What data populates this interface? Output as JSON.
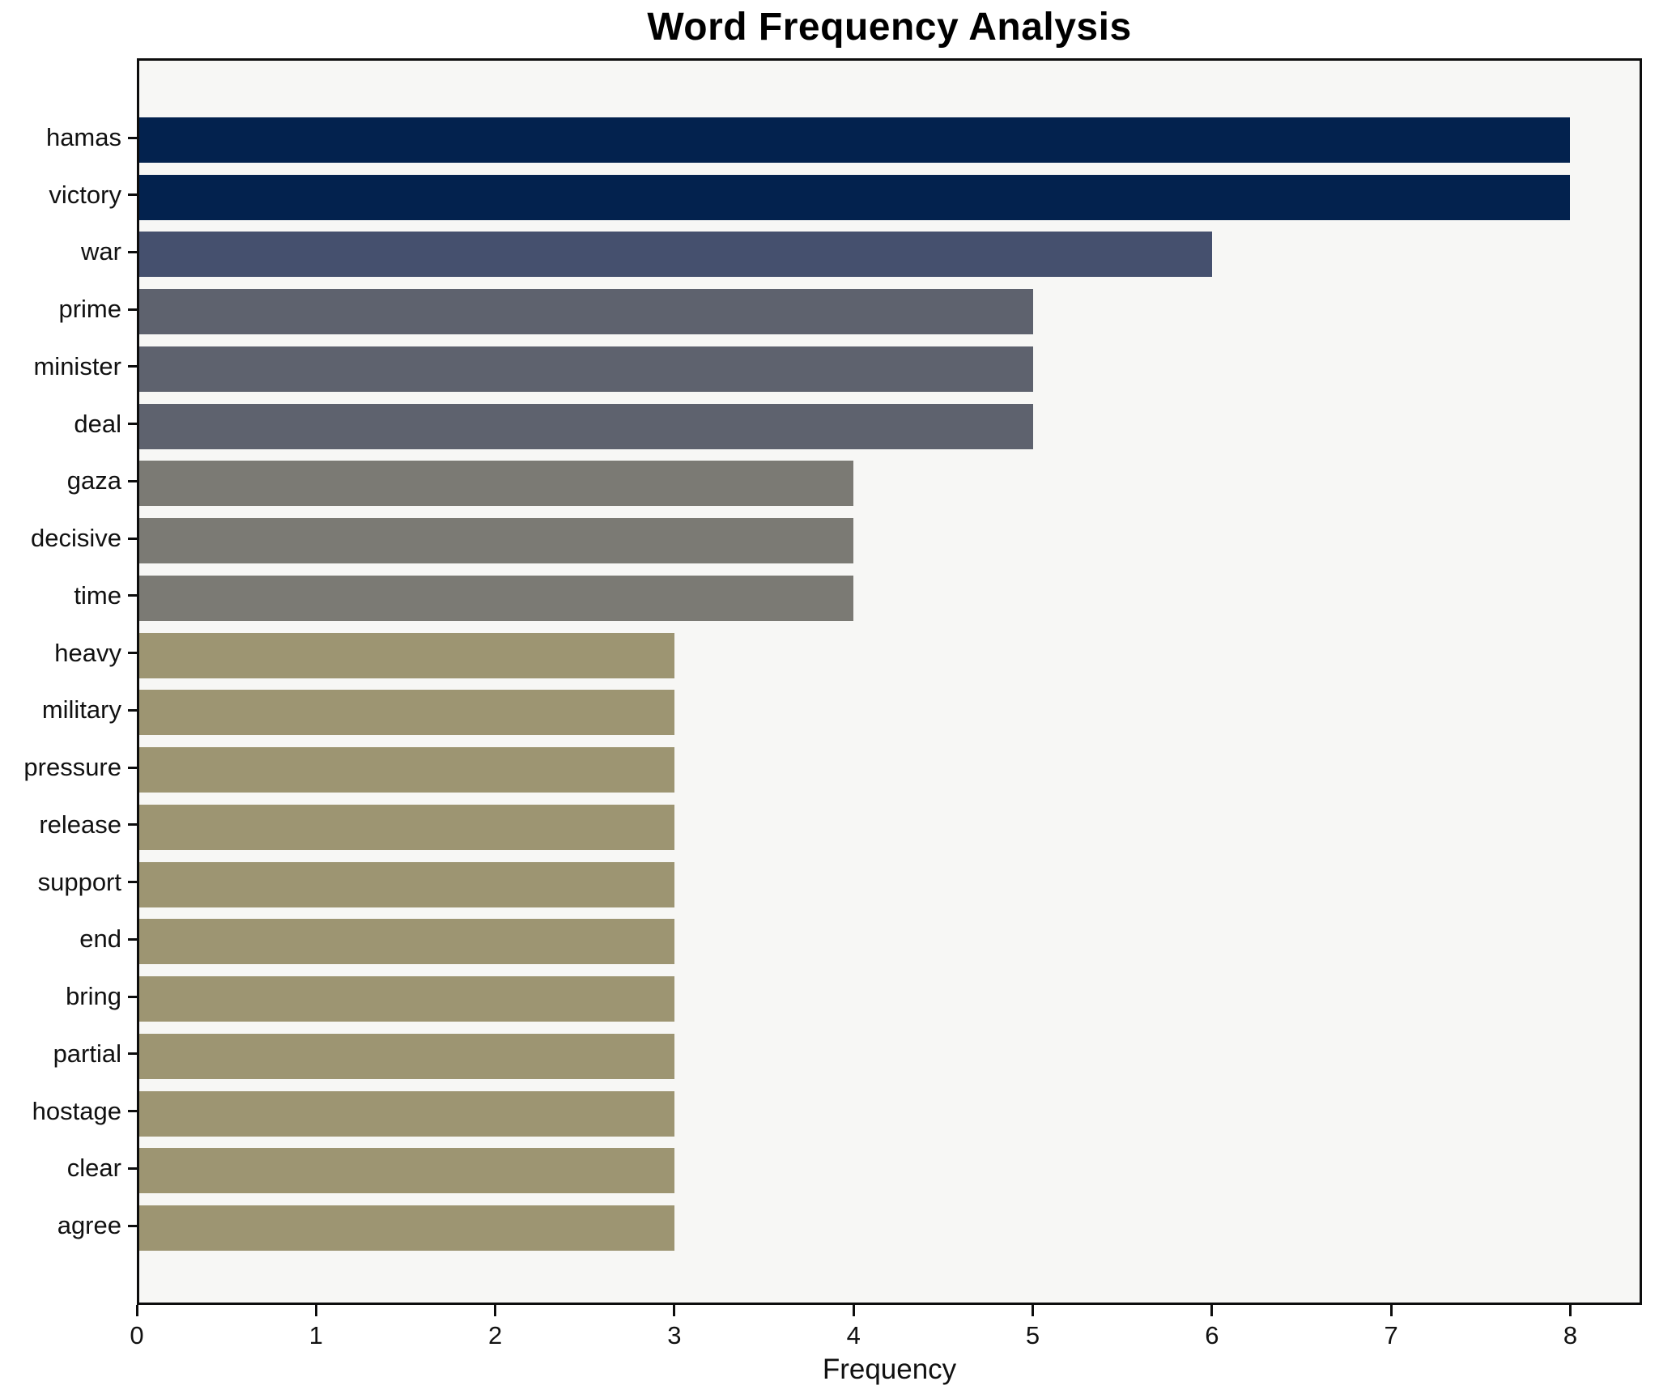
{
  "title": "Word Frequency Analysis",
  "chart_data": {
    "type": "bar",
    "orientation": "horizontal",
    "title": "Word Frequency Analysis",
    "xlabel": "Frequency",
    "ylabel": "",
    "categories": [
      "hamas",
      "victory",
      "war",
      "prime",
      "minister",
      "deal",
      "gaza",
      "decisive",
      "time",
      "heavy",
      "military",
      "pressure",
      "release",
      "support",
      "end",
      "bring",
      "partial",
      "hostage",
      "clear",
      "agree"
    ],
    "values": [
      8,
      8,
      6,
      5,
      5,
      5,
      4,
      4,
      4,
      3,
      3,
      3,
      3,
      3,
      3,
      3,
      3,
      3,
      3,
      3
    ],
    "bar_colors": [
      "#03224e",
      "#03224e",
      "#45506e",
      "#5e626e",
      "#5e626e",
      "#5e626e",
      "#7b7a74",
      "#7b7a74",
      "#7b7a74",
      "#9d9572",
      "#9d9572",
      "#9d9572",
      "#9d9572",
      "#9d9572",
      "#9d9572",
      "#9d9572",
      "#9d9572",
      "#9d9572",
      "#9d9572",
      "#9d9572"
    ],
    "xlim": [
      0,
      8.4
    ],
    "xticks": [
      0,
      1,
      2,
      3,
      4,
      5,
      6,
      7,
      8
    ],
    "grid": false,
    "legend": null
  },
  "colors": {
    "page_bg": "#ffffff",
    "plot_bg": "#f7f7f5",
    "spine": "#0d0d0d",
    "text": "#111111"
  }
}
